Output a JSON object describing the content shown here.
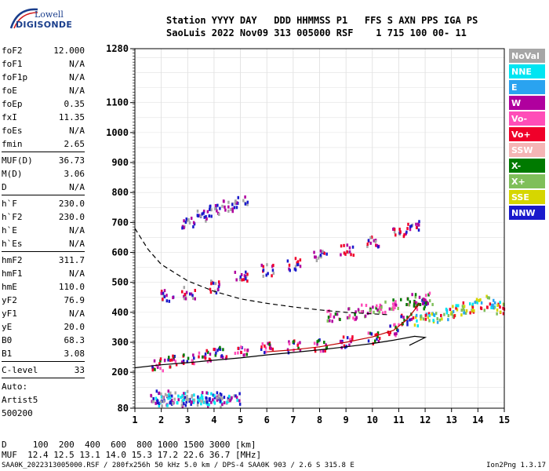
{
  "logo": {
    "line1": "Lowell",
    "line2": "DIGISONDE"
  },
  "header": {
    "line1": "Station YYYY DAY   DDD HHMMSS P1   FFS S AXN PPS IGA PS",
    "line2": "SaoLuis 2022 Nov09 313 005000 RSF    1 715 100 00- 11"
  },
  "params": [
    {
      "k": "foF2",
      "v": "12.000"
    },
    {
      "k": "foF1",
      "v": "N/A"
    },
    {
      "k": "foF1p",
      "v": "N/A"
    },
    {
      "k": "foE",
      "v": "N/A"
    },
    {
      "k": "foEp",
      "v": "0.35"
    },
    {
      "k": "fxI",
      "v": "11.35"
    },
    {
      "k": "foEs",
      "v": "N/A"
    },
    {
      "k": "fmin",
      "v": "2.65"
    },
    {
      "sep": true
    },
    {
      "k": "MUF(D)",
      "v": "36.73"
    },
    {
      "k": "M(D)",
      "v": "3.06"
    },
    {
      "k": "D",
      "v": "N/A"
    },
    {
      "sep": true
    },
    {
      "k": "h`F",
      "v": "230.0"
    },
    {
      "k": "h`F2",
      "v": "230.0"
    },
    {
      "k": "h`E",
      "v": "N/A"
    },
    {
      "k": "h`Es",
      "v": "N/A"
    },
    {
      "sep": true
    },
    {
      "k": "hmF2",
      "v": "311.7"
    },
    {
      "k": "hmF1",
      "v": "N/A"
    },
    {
      "k": "hmE",
      "v": "110.0"
    },
    {
      "k": "yF2",
      "v": "76.9"
    },
    {
      "k": "yF1",
      "v": "N/A"
    },
    {
      "k": "yE",
      "v": "20.0"
    },
    {
      "k": "B0",
      "v": "68.3"
    },
    {
      "k": "B1",
      "v": "3.08"
    },
    {
      "sep": true
    },
    {
      "k": "C-level",
      "v": "33"
    },
    {
      "sep": true
    }
  ],
  "auto": {
    "line1": "Auto:",
    "line2": "Artist5",
    "line3": "500200"
  },
  "bottom": {
    "line1": "D     100  200  400  600  800 1000 1500 3000 [km]",
    "line2": "MUF  12.4 12.5 13.1 14.0 15.3 17.2 22.6 36.7 [MHz]"
  },
  "footer": "SAA0K_2022313005000.RSF / 280fx256h 50 kHz 5.0 km / DPS-4 SAA0K 903 / 2.6 S 315.8 E",
  "version": "Ion2Png 1.3.17",
  "legend": [
    {
      "label": "NoVal",
      "color": "#a6a6a6"
    },
    {
      "label": "NNE",
      "color": "#00e5f2"
    },
    {
      "label": "E",
      "color": "#2aa3f0"
    },
    {
      "label": "W",
      "color": "#b0009e"
    },
    {
      "label": "Vo-",
      "color": "#ff4db8"
    },
    {
      "label": "Vo+",
      "color": "#f0002a"
    },
    {
      "label": "SSW",
      "color": "#f5b5b5"
    },
    {
      "label": "X-",
      "color": "#007a00"
    },
    {
      "label": "X+",
      "color": "#7fbf5a"
    },
    {
      "label": "SSE",
      "color": "#d6d600"
    },
    {
      "label": "NNW",
      "color": "#1a1acc"
    }
  ],
  "chart_data": {
    "type": "scatter",
    "title": "",
    "xlabel": "",
    "ylabel": "",
    "xlim": [
      1,
      15
    ],
    "ylim": [
      80,
      1280
    ],
    "xticks": [
      1,
      2,
      3,
      4,
      5,
      6,
      7,
      8,
      9,
      10,
      11,
      12,
      13,
      14,
      15
    ],
    "yticks": [
      80,
      200,
      300,
      400,
      500,
      600,
      700,
      800,
      900,
      1000,
      1100,
      1280
    ],
    "grid": true,
    "legend_position": "right",
    "clusters": [
      {
        "name": "E layer",
        "color_mix": [
          "#1a1acc",
          "#00e5f2",
          "#a6a6a6",
          "#b0009e"
        ],
        "points": [
          [
            1.8,
            110
          ],
          [
            2.0,
            125
          ],
          [
            2.2,
            112
          ],
          [
            2.5,
            120
          ],
          [
            2.8,
            108
          ],
          [
            3.0,
            125
          ],
          [
            3.3,
            110
          ],
          [
            3.6,
            118
          ],
          [
            3.9,
            112
          ],
          [
            4.1,
            122
          ],
          [
            4.4,
            108
          ],
          [
            4.7,
            118
          ]
        ]
      },
      {
        "name": "F2 O-trace",
        "color_mix": [
          "#f0002a",
          "#ff4db8",
          "#1a1acc",
          "#007a00",
          "#b0009e"
        ],
        "points": [
          [
            1.8,
            230
          ],
          [
            2.3,
            240
          ],
          [
            3.0,
            250
          ],
          [
            3.6,
            260
          ],
          [
            4.2,
            270
          ],
          [
            5.0,
            280
          ],
          [
            6.0,
            285
          ],
          [
            7.0,
            290
          ],
          [
            8.0,
            295
          ],
          [
            9.0,
            305
          ],
          [
            10.0,
            320
          ],
          [
            10.8,
            345
          ],
          [
            11.3,
            380
          ],
          [
            11.8,
            430
          ]
        ]
      },
      {
        "name": "F2 X-trace",
        "color_mix": [
          "#b0009e",
          "#ff4db8",
          "#007a00",
          "#7fbf5a"
        ],
        "points": [
          [
            8.5,
            395
          ],
          [
            9.2,
            400
          ],
          [
            9.8,
            410
          ],
          [
            10.3,
            420
          ],
          [
            10.8,
            430
          ],
          [
            11.5,
            445
          ],
          [
            12.0,
            450
          ]
        ]
      },
      {
        "name": "Spread F",
        "color_mix": [
          "#00e5f2",
          "#2aa3f0",
          "#f0002a",
          "#7fbf5a",
          "#d6d600"
        ],
        "points": [
          [
            11.8,
            380
          ],
          [
            12.3,
            390
          ],
          [
            12.8,
            400
          ],
          [
            13.2,
            410
          ],
          [
            13.6,
            420
          ],
          [
            14.0,
            430
          ],
          [
            14.5,
            440
          ],
          [
            14.8,
            420
          ]
        ]
      },
      {
        "name": "Multi-hop 1",
        "color_mix": [
          "#1a1acc",
          "#b0009e",
          "#f0002a",
          "#a6a6a6"
        ],
        "points": [
          [
            2.2,
            460
          ],
          [
            3.0,
            470
          ],
          [
            4.0,
            490
          ],
          [
            5.0,
            520
          ],
          [
            6.0,
            545
          ],
          [
            7.0,
            565
          ],
          [
            8.0,
            590
          ],
          [
            9.0,
            610
          ],
          [
            10.0,
            640
          ],
          [
            11.0,
            665
          ],
          [
            11.5,
            690
          ]
        ]
      },
      {
        "name": "Multi-hop 2",
        "color_mix": [
          "#b0009e",
          "#1a1acc",
          "#a6a6a6"
        ],
        "points": [
          [
            3.0,
            700
          ],
          [
            3.5,
            725
          ],
          [
            4.0,
            745
          ],
          [
            4.5,
            760
          ],
          [
            5.0,
            775
          ]
        ]
      }
    ],
    "curves": [
      {
        "name": "profile",
        "style": "solid",
        "points": [
          [
            1,
            215
          ],
          [
            2,
            225
          ],
          [
            3,
            232
          ],
          [
            4,
            240
          ],
          [
            5,
            248
          ],
          [
            6,
            258
          ],
          [
            7,
            266
          ],
          [
            8,
            275
          ],
          [
            9,
            285
          ],
          [
            10,
            296
          ],
          [
            10.8,
            307
          ],
          [
            11.6,
            320
          ],
          [
            12,
            316
          ],
          [
            11.4,
            290
          ]
        ]
      },
      {
        "name": "muf-dashed",
        "style": "dashed",
        "points": [
          [
            1,
            680
          ],
          [
            1.5,
            610
          ],
          [
            2,
            560
          ],
          [
            3,
            505
          ],
          [
            4,
            470
          ],
          [
            5,
            445
          ],
          [
            6,
            430
          ],
          [
            7,
            418
          ],
          [
            8,
            408
          ],
          [
            9,
            400
          ],
          [
            10,
            395
          ],
          [
            10.6,
            392
          ]
        ]
      },
      {
        "name": "trace-red",
        "style": "solid-red",
        "points": [
          [
            6,
            268
          ],
          [
            7,
            275
          ],
          [
            8,
            285
          ],
          [
            9,
            300
          ],
          [
            10,
            318
          ],
          [
            10.8,
            340
          ],
          [
            11.3,
            375
          ],
          [
            11.8,
            430
          ]
        ]
      }
    ]
  }
}
